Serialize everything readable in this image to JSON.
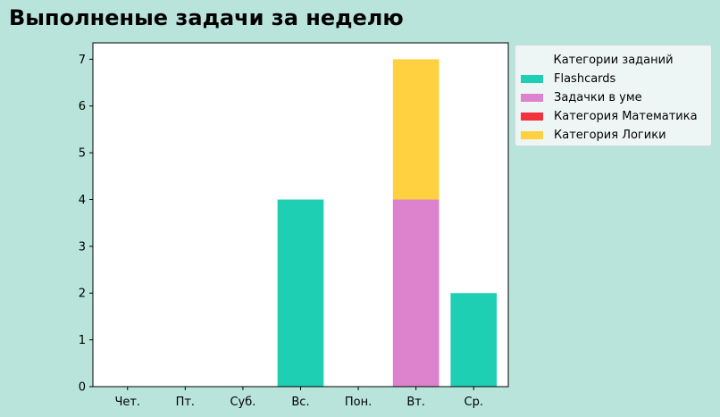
{
  "chart_data": {
    "type": "bar",
    "stacked": true,
    "title": "Выполненые задачи за неделю",
    "xlabel": "",
    "ylabel": "",
    "categories": [
      "Чет.",
      "Пт.",
      "Суб.",
      "Вс.",
      "Пон.",
      "Вт.",
      "Ср."
    ],
    "ylim": [
      0,
      7.35
    ],
    "yticks": [
      "0",
      "1",
      "2",
      "3",
      "4",
      "5",
      "6",
      "7"
    ],
    "legend_title": "Категории заданий",
    "legend_placement": "outside-right-top",
    "grid": false,
    "series": [
      {
        "name": "Flashcards",
        "color": "#1fcfb4",
        "values": [
          0,
          0,
          0,
          4,
          0,
          0,
          2
        ]
      },
      {
        "name": "Задачки в уме",
        "color": "#dd82cc",
        "values": [
          0,
          0,
          0,
          0,
          0,
          4,
          0
        ]
      },
      {
        "name": "Категория Математика",
        "color": "#f2333f",
        "values": [
          0,
          0,
          0,
          0,
          0,
          0,
          0
        ]
      },
      {
        "name": "Категория Логики",
        "color": "#ffd03f",
        "values": [
          0,
          0,
          0,
          0,
          0,
          3,
          0
        ]
      }
    ]
  },
  "colors": {
    "background": "#b8e4dc",
    "plot_background": "#ffffff"
  }
}
